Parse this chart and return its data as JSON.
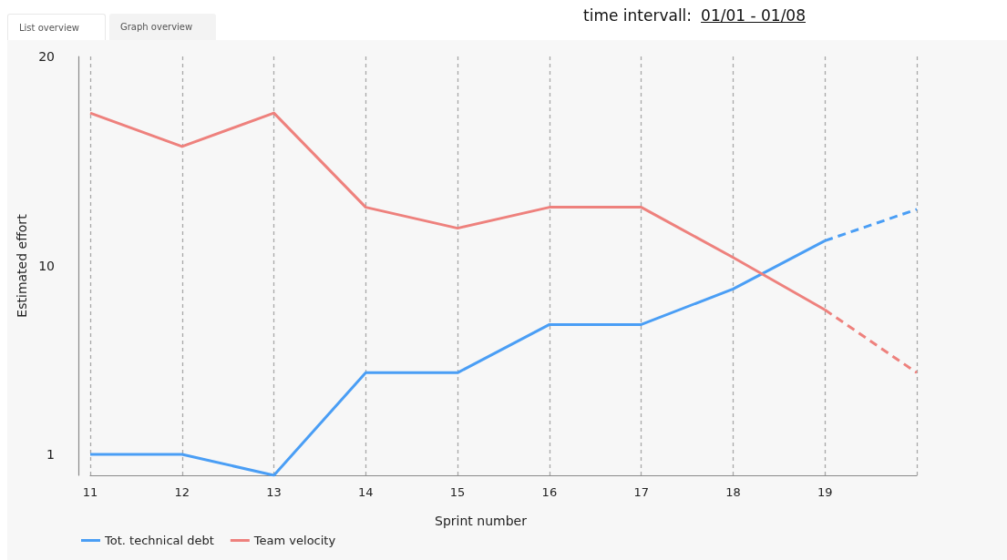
{
  "chart_data": {
    "type": "line",
    "annotations": [
      "List overview",
      "Graph overview",
      "time intervall:",
      "01/01 - 01/08"
    ],
    "xlabel": "Sprint number",
    "ylabel": "Estimated effort",
    "categories": [
      "11",
      "12",
      "13",
      "14",
      "15",
      "16",
      "17",
      "18",
      "19",
      null
    ],
    "series": [
      {
        "name": "Tot. technical debt",
        "color": "#4a9ef5",
        "values": [
          1,
          1,
          0,
          4.9,
          4.9,
          7.2,
          7.2,
          8.9,
          11.2,
          null
        ]
      },
      {
        "name": "Team velocity",
        "color": "#ee817d",
        "values": [
          17.3,
          15.7,
          17.3,
          12.8,
          11.8,
          12.8,
          12.8,
          10.4,
          7.9,
          null
        ]
      },
      {
        "color": "#4a9ef5",
        "line_style": "dashed",
        "values": [
          null,
          null,
          null,
          null,
          null,
          null,
          null,
          null,
          11.2,
          12.7
        ]
      },
      {
        "color": "#ee817d",
        "line_style": "dashed",
        "values": [
          null,
          null,
          null,
          null,
          null,
          null,
          null,
          null,
          7.9,
          4.9
        ]
      }
    ],
    "ylim": [
      0,
      20
    ],
    "yticks": [
      1,
      10,
      20
    ],
    "grid": "x",
    "legend": "bottom left",
    "marker": "none",
    "line_style": "solid"
  }
}
